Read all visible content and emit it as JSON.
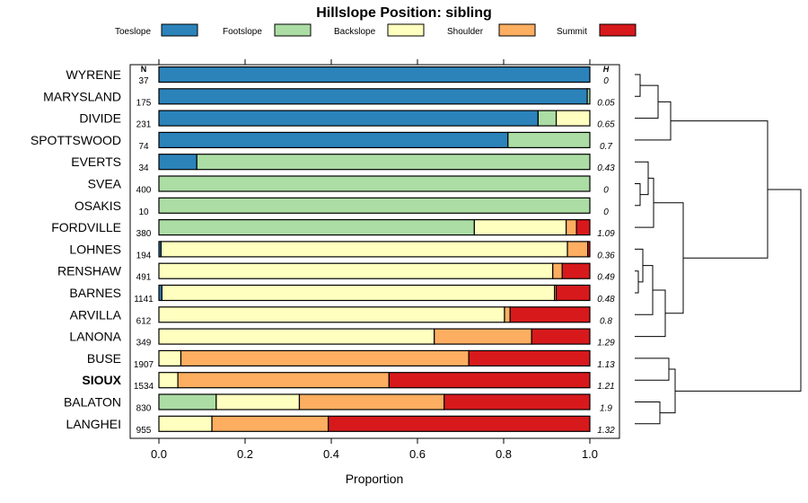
{
  "chart_data": {
    "type": "bar",
    "orientation": "horizontal",
    "stacked": true,
    "title": "Hillslope Position: sibling",
    "xlabel": "Proportion",
    "xlim": [
      0,
      1
    ],
    "x_ticks": [
      "0.0",
      "0.2",
      "0.4",
      "0.6",
      "0.8",
      "1.0"
    ],
    "n_header": "N",
    "h_header": "H",
    "highlighted_category": "SIOUX",
    "legend_position": "top",
    "legend": [
      {
        "name": "Toeslope",
        "color": "#2b83ba"
      },
      {
        "name": "Footslope",
        "color": "#abdda4"
      },
      {
        "name": "Backslope",
        "color": "#ffffbf"
      },
      {
        "name": "Shoulder",
        "color": "#fdae61"
      },
      {
        "name": "Summit",
        "color": "#d7191c"
      }
    ],
    "rows": [
      {
        "name": "WYRENE",
        "n": "37",
        "h": "0",
        "values": [
          1.0,
          0,
          0,
          0,
          0
        ]
      },
      {
        "name": "MARYSLAND",
        "n": "175",
        "h": "0.05",
        "values": [
          0.994,
          0.006,
          0,
          0,
          0
        ]
      },
      {
        "name": "DIVIDE",
        "n": "231",
        "h": "0.65",
        "values": [
          0.88,
          0.042,
          0.078,
          0,
          0
        ]
      },
      {
        "name": "SPOTTSWOOD",
        "n": "74",
        "h": "0.7",
        "values": [
          0.81,
          0.19,
          0,
          0,
          0
        ]
      },
      {
        "name": "EVERTS",
        "n": "34",
        "h": "0.43",
        "values": [
          0.088,
          0.912,
          0,
          0,
          0
        ]
      },
      {
        "name": "SVEA",
        "n": "400",
        "h": "0",
        "values": [
          0,
          1.0,
          0,
          0,
          0
        ]
      },
      {
        "name": "OSAKIS",
        "n": "10",
        "h": "0",
        "values": [
          0,
          1.0,
          0,
          0,
          0
        ]
      },
      {
        "name": "FORDVILLE",
        "n": "380",
        "h": "1.09",
        "values": [
          0,
          0.732,
          0.213,
          0.024,
          0.031
        ]
      },
      {
        "name": "LOHNES",
        "n": "194",
        "h": "0.36",
        "values": [
          0.005,
          0,
          0.943,
          0.047,
          0.005
        ]
      },
      {
        "name": "RENSHAW",
        "n": "491",
        "h": "0.49",
        "values": [
          0,
          0,
          0.914,
          0.022,
          0.064
        ]
      },
      {
        "name": "BARNES",
        "n": "1141",
        "h": "0.48",
        "values": [
          0.007,
          0,
          0.911,
          0.004,
          0.078
        ]
      },
      {
        "name": "ARVILLA",
        "n": "612",
        "h": "0.8",
        "values": [
          0,
          0,
          0.802,
          0.013,
          0.185
        ]
      },
      {
        "name": "LANONA",
        "n": "349",
        "h": "1.29",
        "values": [
          0,
          0,
          0.639,
          0.226,
          0.135
        ]
      },
      {
        "name": "BUSE",
        "n": "1907",
        "h": "1.13",
        "values": [
          0,
          0,
          0.051,
          0.668,
          0.281
        ]
      },
      {
        "name": "SIOUX",
        "n": "1534",
        "h": "1.21",
        "values": [
          0,
          0,
          0.044,
          0.49,
          0.466
        ]
      },
      {
        "name": "BALATON",
        "n": "830",
        "h": "1.9",
        "values": [
          0,
          0.133,
          0.193,
          0.336,
          0.338
        ]
      },
      {
        "name": "LANGHEI",
        "n": "955",
        "h": "1.32",
        "values": [
          0,
          0,
          0.123,
          0.27,
          0.607
        ]
      }
    ],
    "dendrogram": "tree"
  }
}
